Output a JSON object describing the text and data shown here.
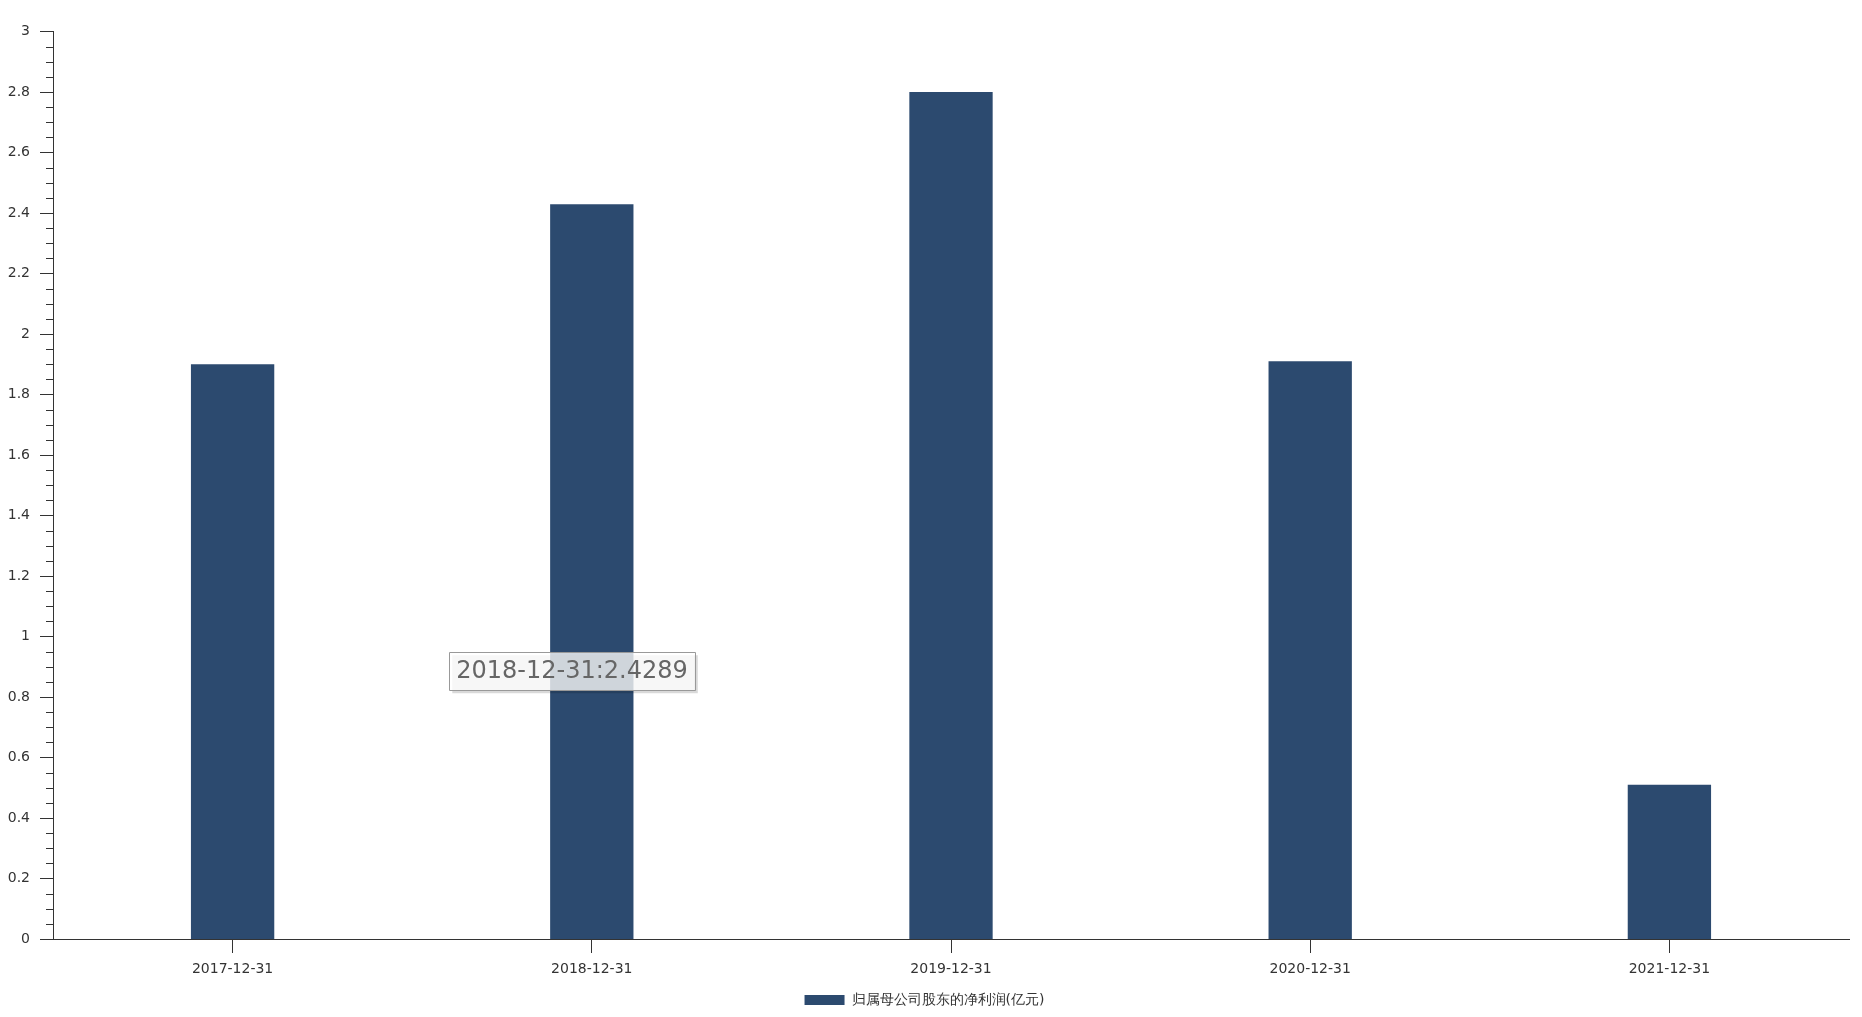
{
  "chart_data": {
    "type": "bar",
    "categories": [
      "2017-12-31",
      "2018-12-31",
      "2019-12-31",
      "2020-12-31",
      "2021-12-31"
    ],
    "series": [
      {
        "name": "归属母公司股东的净利润(亿元)",
        "color": "#2c4a6f",
        "values": [
          1.9,
          2.4289,
          2.8,
          1.91,
          0.51
        ]
      }
    ],
    "ylim": [
      0,
      3
    ],
    "yticks": [
      0,
      {
        "value": 0.05,
        "label": null
      },
      {
        "value": 0.1,
        "label": null
      },
      {
        "value": 0.15,
        "label": null
      },
      0.2,
      {
        "value": 0.25,
        "label": null
      },
      {
        "value": 0.3,
        "label": null
      },
      {
        "value": 0.35,
        "label": null
      },
      0.4,
      {
        "value": 0.45,
        "label": null
      },
      {
        "value": 0.5,
        "label": null
      },
      {
        "value": 0.55,
        "label": null
      },
      0.6,
      {
        "value": 0.65,
        "label": null
      },
      {
        "value": 0.7,
        "label": null
      },
      {
        "value": 0.75,
        "label": null
      },
      0.8,
      {
        "value": 0.85,
        "label": null
      },
      {
        "value": 0.9,
        "label": null
      },
      {
        "value": 0.95,
        "label": null
      },
      1,
      {
        "value": 1.05,
        "label": null
      },
      {
        "value": 1.1,
        "label": null
      },
      {
        "value": 1.15,
        "label": null
      },
      1.2,
      {
        "value": 1.25,
        "label": null
      },
      {
        "value": 1.3,
        "label": null
      },
      {
        "value": 1.35,
        "label": null
      },
      1.4,
      {
        "value": 1.45,
        "label": null
      },
      {
        "value": 1.5,
        "label": null
      },
      {
        "value": 1.55,
        "label": null
      },
      1.6,
      {
        "value": 1.65,
        "label": null
      },
      {
        "value": 1.7,
        "label": null
      },
      {
        "value": 1.75,
        "label": null
      },
      1.8,
      {
        "value": 1.85,
        "label": null
      },
      {
        "value": 1.9,
        "label": null
      },
      {
        "value": 1.95,
        "label": null
      },
      2,
      {
        "value": 2.05,
        "label": null
      },
      {
        "value": 2.1,
        "label": null
      },
      {
        "value": 2.15,
        "label": null
      },
      2.2,
      {
        "value": 2.25,
        "label": null
      },
      {
        "value": 2.3,
        "label": null
      },
      {
        "value": 2.35,
        "label": null
      },
      2.4,
      {
        "value": 2.45,
        "label": null
      },
      {
        "value": 2.5,
        "label": null
      },
      {
        "value": 2.55,
        "label": null
      },
      2.6,
      {
        "value": 2.65,
        "label": null
      },
      {
        "value": 2.7,
        "label": null
      },
      {
        "value": 2.75,
        "label": null
      },
      2.8,
      {
        "value": 2.85,
        "label": null
      },
      {
        "value": 2.9,
        "label": null
      },
      {
        "value": 2.95,
        "label": null
      },
      3
    ],
    "legend": "bottom",
    "annotations": [
      "2018-12-31:2.4289"
    ]
  }
}
